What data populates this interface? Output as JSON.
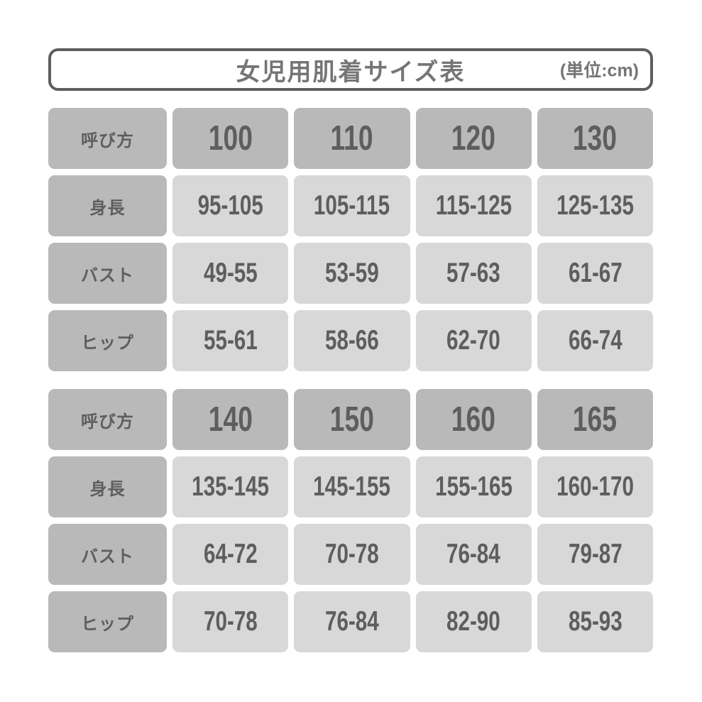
{
  "title": {
    "text": "女児用肌着サイズ表",
    "unit": "(単位:cm)"
  },
  "colors": {
    "header_cell": "#b9b9b9",
    "data_cell": "#d8d8d8",
    "cell_text": "#5e5e5e",
    "title_text": "#757575",
    "title_border": "#5e5e5e",
    "background": "#ffffff"
  },
  "chart_data": [
    {
      "type": "table",
      "title": "女児用肌着サイズ表",
      "unit": "cm",
      "header": {
        "label": "呼び方",
        "sizes": [
          "100",
          "110",
          "120",
          "130"
        ]
      },
      "rows": [
        {
          "label": "身長",
          "values": [
            "95-105",
            "105-115",
            "115-125",
            "125-135"
          ]
        },
        {
          "label": "バスト",
          "values": [
            "49-55",
            "53-59",
            "57-63",
            "61-67"
          ]
        },
        {
          "label": "ヒップ",
          "values": [
            "55-61",
            "58-66",
            "62-70",
            "66-74"
          ]
        }
      ]
    },
    {
      "type": "table",
      "title": "女児用肌着サイズ表",
      "unit": "cm",
      "header": {
        "label": "呼び方",
        "sizes": [
          "140",
          "150",
          "160",
          "165"
        ]
      },
      "rows": [
        {
          "label": "身長",
          "values": [
            "135-145",
            "145-155",
            "155-165",
            "160-170"
          ]
        },
        {
          "label": "バスト",
          "values": [
            "64-72",
            "70-78",
            "76-84",
            "79-87"
          ]
        },
        {
          "label": "ヒップ",
          "values": [
            "70-78",
            "76-84",
            "82-90",
            "85-93"
          ]
        }
      ]
    }
  ]
}
